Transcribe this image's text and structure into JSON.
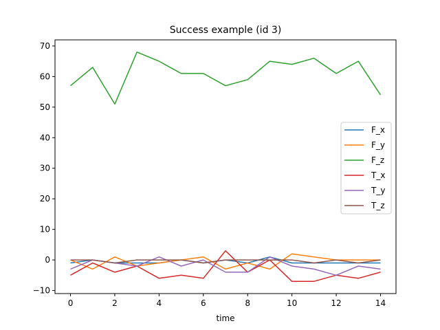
{
  "chart_data": {
    "type": "line",
    "title": "Success example (id 3)",
    "xlabel": "time",
    "ylabel": "",
    "xlim": [
      -0.7,
      14.7
    ],
    "ylim": [
      -11,
      72
    ],
    "x_ticks": [
      0,
      2,
      4,
      6,
      8,
      10,
      12,
      14
    ],
    "y_ticks": [
      -10,
      0,
      10,
      20,
      30,
      40,
      50,
      60,
      70
    ],
    "x": [
      0,
      1,
      2,
      3,
      4,
      5,
      6,
      7,
      8,
      9,
      10,
      11,
      12,
      13,
      14
    ],
    "legend_position": "center-right",
    "grid": false,
    "series": [
      {
        "name": "F_x",
        "color": "#1f77b4",
        "values": [
          -1,
          0,
          -1,
          -1,
          -1,
          0,
          -1,
          0,
          -1,
          1,
          -1,
          -1,
          -1,
          -1,
          -1
        ]
      },
      {
        "name": "F_y",
        "color": "#ff7f0e",
        "values": [
          0,
          -3,
          1,
          -2,
          -1,
          0,
          1,
          -3,
          -1,
          -3,
          2,
          1,
          0,
          0,
          0
        ]
      },
      {
        "name": "F_z",
        "color": "#2ca02c",
        "values": [
          57,
          63,
          51,
          68,
          65,
          61,
          61,
          57,
          59,
          65,
          64,
          66,
          61,
          65,
          54
        ]
      },
      {
        "name": "T_x",
        "color": "#d62728",
        "values": [
          -5,
          -1,
          -4,
          -2,
          -6,
          -5,
          -6,
          3,
          -4,
          0,
          -7,
          -7,
          -5,
          -6,
          -4
        ]
      },
      {
        "name": "T_y",
        "color": "#9467bd",
        "values": [
          -3,
          0,
          -1,
          -2,
          1,
          -2,
          0,
          -4,
          -4,
          1,
          -2,
          -3,
          -5,
          -2,
          -3
        ]
      },
      {
        "name": "T_z",
        "color": "#8c564b",
        "values": [
          0,
          0,
          -1,
          0,
          0,
          0,
          -1,
          0,
          0,
          0,
          0,
          -1,
          0,
          -1,
          0
        ]
      }
    ]
  }
}
